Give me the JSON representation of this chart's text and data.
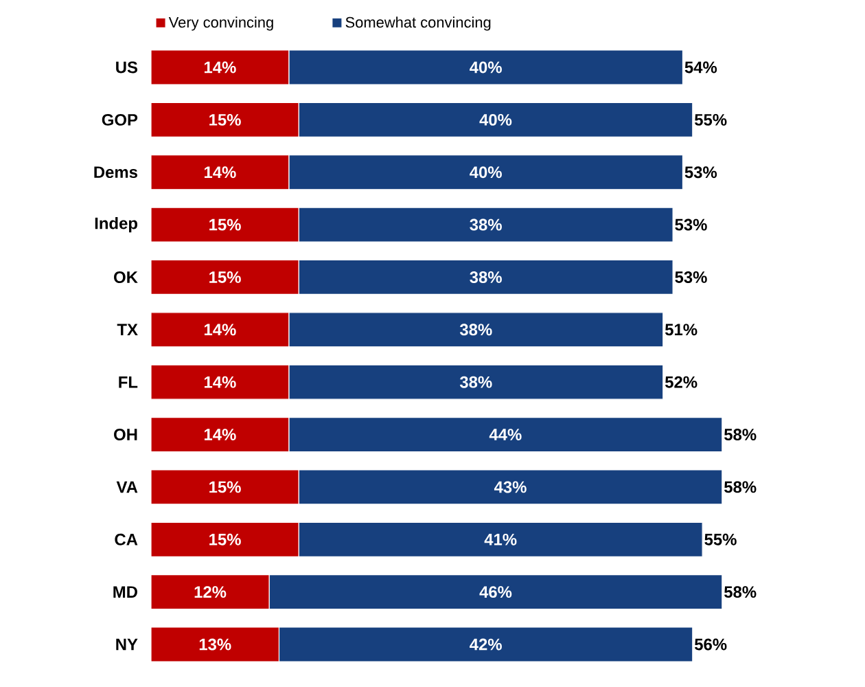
{
  "chart_data": {
    "type": "bar",
    "orientation": "horizontal",
    "stacked": true,
    "legend": "top left",
    "tick_labels": "y",
    "categories": [
      "US",
      "GOP",
      "Dems",
      "Indep",
      "OK",
      "TX",
      "FL",
      "OH",
      "VA",
      "CA",
      "MD",
      "NY"
    ],
    "series": [
      {
        "name": "Very convincing",
        "color": "#c00000",
        "values": [
          14,
          15,
          14,
          15,
          15,
          14,
          14,
          14,
          15,
          15,
          12,
          13
        ],
        "value_labels": [
          "14%",
          "15%",
          "14%",
          "15%",
          "15%",
          "14%",
          "14%",
          "14%",
          "15%",
          "15%",
          "12%",
          "13%"
        ]
      },
      {
        "name": "Somewhat convincing",
        "color": "#17407e",
        "values": [
          40,
          40,
          40,
          38,
          38,
          38,
          38,
          44,
          43,
          41,
          46,
          42
        ],
        "value_labels": [
          "40%",
          "40%",
          "40%",
          "38%",
          "38%",
          "38%",
          "38%",
          "44%",
          "43%",
          "41%",
          "46%",
          "42%"
        ]
      }
    ],
    "totals": [
      "54%",
      "55%",
      "53%",
      "53%",
      "53%",
      "51%",
      "52%",
      "58%",
      "58%",
      "55%",
      "58%",
      "56%"
    ]
  }
}
